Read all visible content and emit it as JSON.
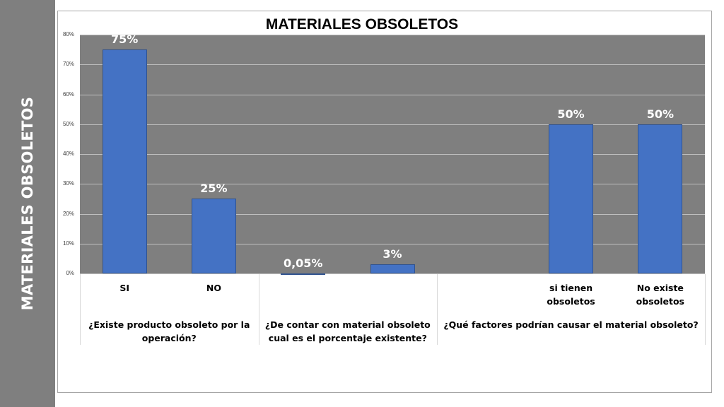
{
  "slide": {
    "side_title": "MATERIALES OBSOLETOS"
  },
  "chart_data": {
    "type": "bar",
    "title": "MATERIALES OBSOLETOS",
    "xlabel": "",
    "ylabel": "",
    "ylim": [
      0,
      80
    ],
    "ytick_labels": [
      "0%",
      "10%",
      "20%",
      "30%",
      "40%",
      "50%",
      "60%",
      "70%",
      "80%"
    ],
    "grid": true,
    "legend": "none",
    "bar_color": "#4472c4",
    "plot_background": "#7f7f7f",
    "categories": [
      "SI",
      "NO",
      "",
      "",
      "",
      "si tienen obsoletos",
      "No existe obsoletos"
    ],
    "values": [
      75,
      25,
      0.05,
      3,
      null,
      50,
      50
    ],
    "data_labels": [
      "75%",
      "25%",
      "0,05%",
      "3%",
      "",
      "50%",
      "50%"
    ],
    "groups": [
      {
        "label": "¿Existe producto obsoleto por la operación?",
        "categories": [
          0,
          1
        ]
      },
      {
        "label": "¿De contar con material obsoleto cual es el porcentaje existente?",
        "categories": [
          2,
          3
        ]
      },
      {
        "label": "¿Qué factores podrían causar el material obsoleto?",
        "categories": [
          4,
          5,
          6
        ]
      }
    ]
  }
}
